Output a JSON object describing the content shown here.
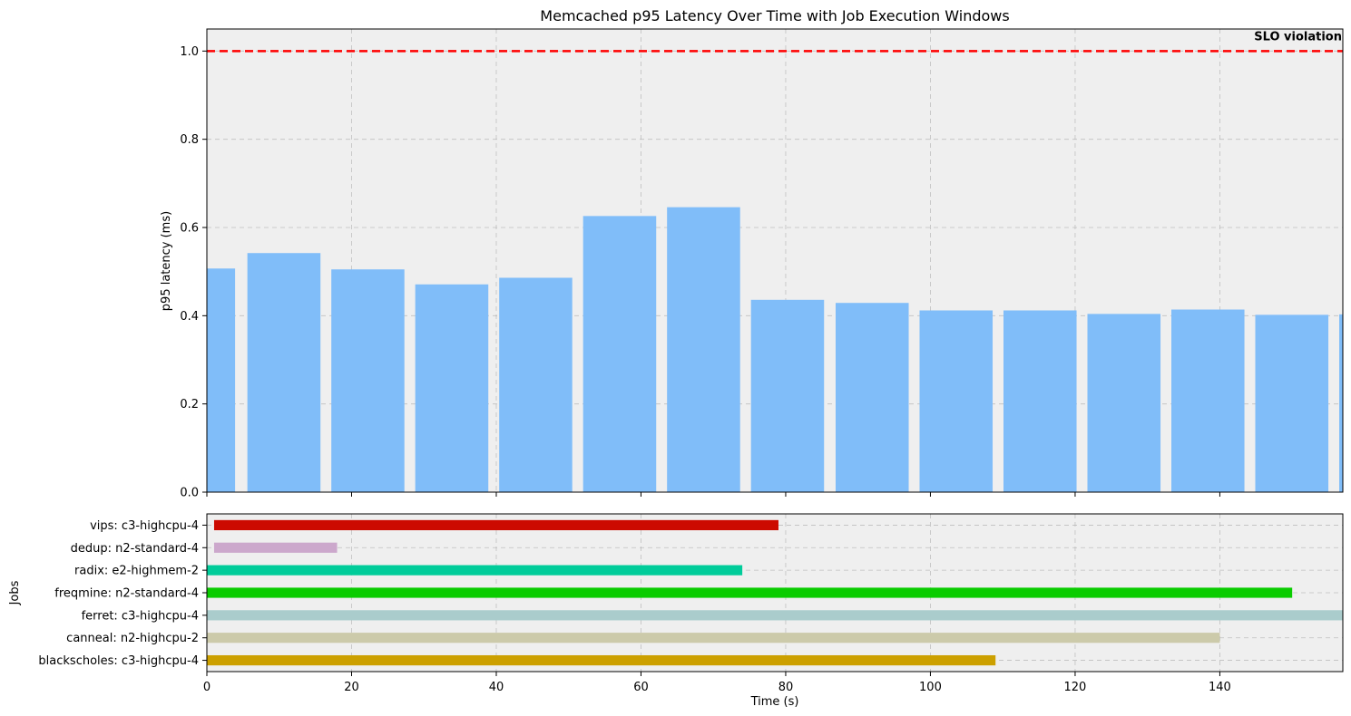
{
  "chart_data": [
    {
      "type": "bar",
      "title": "Memcached p95 Latency Over Time with Job Execution Windows",
      "ylabel": "p95 latency (ms)",
      "xlim": [
        0,
        157
      ],
      "ylim": [
        0,
        1.05
      ],
      "grid": true,
      "bar_color": "#80bdf9",
      "yticks": [
        0.0,
        0.2,
        0.4,
        0.6,
        0.8,
        1.0
      ],
      "yticklabels": [
        "0.0",
        "0.2",
        "0.4",
        "0.6",
        "0.8",
        "1.0"
      ],
      "bars": [
        {
          "start": -4.5,
          "end": 3.9,
          "value": 0.507
        },
        {
          "start": 5.6,
          "end": 15.7,
          "value": 0.542
        },
        {
          "start": 17.2,
          "end": 27.3,
          "value": 0.505
        },
        {
          "start": 28.8,
          "end": 38.9,
          "value": 0.471
        },
        {
          "start": 40.4,
          "end": 50.5,
          "value": 0.486
        },
        {
          "start": 52.0,
          "end": 62.1,
          "value": 0.626
        },
        {
          "start": 63.6,
          "end": 73.7,
          "value": 0.646
        },
        {
          "start": 75.2,
          "end": 85.3,
          "value": 0.436
        },
        {
          "start": 86.9,
          "end": 97.0,
          "value": 0.429
        },
        {
          "start": 98.5,
          "end": 108.6,
          "value": 0.412
        },
        {
          "start": 110.1,
          "end": 120.2,
          "value": 0.412
        },
        {
          "start": 121.7,
          "end": 131.8,
          "value": 0.404
        },
        {
          "start": 133.3,
          "end": 143.4,
          "value": 0.414
        },
        {
          "start": 144.9,
          "end": 155.0,
          "value": 0.402
        },
        {
          "start": 156.5,
          "end": 166.6,
          "value": 0.403
        }
      ],
      "slo": {
        "value": 1.0,
        "label": "SLO violation",
        "color": "#ff0000"
      }
    },
    {
      "type": "bar",
      "orientation": "horizontal",
      "xlabel": "Time (s)",
      "ylabel": "Jobs",
      "xlim": [
        0,
        157
      ],
      "xticks": [
        0,
        20,
        40,
        60,
        80,
        100,
        120,
        140
      ],
      "xticklabels": [
        "0",
        "20",
        "40",
        "60",
        "80",
        "100",
        "120",
        "140"
      ],
      "grid": true,
      "jobs": [
        {
          "label": "vips: c3-highcpu-4",
          "start": 1.0,
          "end": 79.0,
          "color": "#cc0a00"
        },
        {
          "label": "dedup: n2-standard-4",
          "start": 1.0,
          "end": 18.0,
          "color": "#cca8cc"
        },
        {
          "label": "radix: e2-highmem-2",
          "start": 0.0,
          "end": 74.0,
          "color": "#00cc9a"
        },
        {
          "label": "freqmine: n2-standard-4",
          "start": 0.0,
          "end": 150.0,
          "color": "#0acc00"
        },
        {
          "label": "ferret: c3-highcpu-4",
          "start": 0.0,
          "end": 157.0,
          "color": "#aacccc"
        },
        {
          "label": "canneal: n2-highcpu-2",
          "start": 0.0,
          "end": 140.0,
          "color": "#cccaaa"
        },
        {
          "label": "blackscholes: c3-highcpu-4",
          "start": 0.0,
          "end": 109.0,
          "color": "#cca000"
        }
      ]
    }
  ]
}
